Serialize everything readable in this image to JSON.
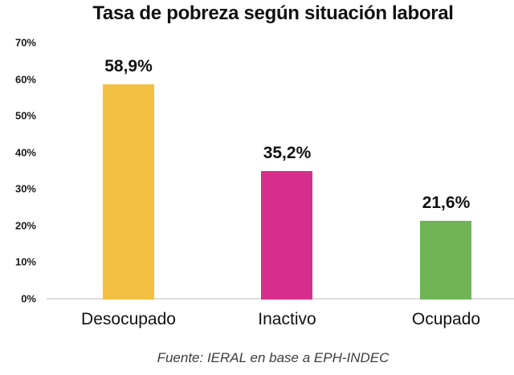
{
  "chart_data": {
    "type": "bar",
    "title": "Tasa de pobreza según situación laboral",
    "categories": [
      "Desocupado",
      "Inactivo",
      "Ocupado"
    ],
    "values": [
      58.9,
      35.2,
      21.6
    ],
    "value_labels": [
      "58,9%",
      "35,2%",
      "21,6%"
    ],
    "bar_colors": [
      "#F2C144",
      "#D62E8C",
      "#70B457"
    ],
    "xlabel": "",
    "ylabel": "",
    "ylim": [
      0,
      70
    ],
    "y_tick_step": 10,
    "y_tick_labels": [
      "0%",
      "10%",
      "20%",
      "30%",
      "40%",
      "50%",
      "60%",
      "70%"
    ],
    "grid": false,
    "legend": false,
    "source_note": "Fuente: IERAL en base a EPH-INDEC",
    "background_color": "#FFFFFF",
    "axis_line_color": "#DCDCDC"
  }
}
